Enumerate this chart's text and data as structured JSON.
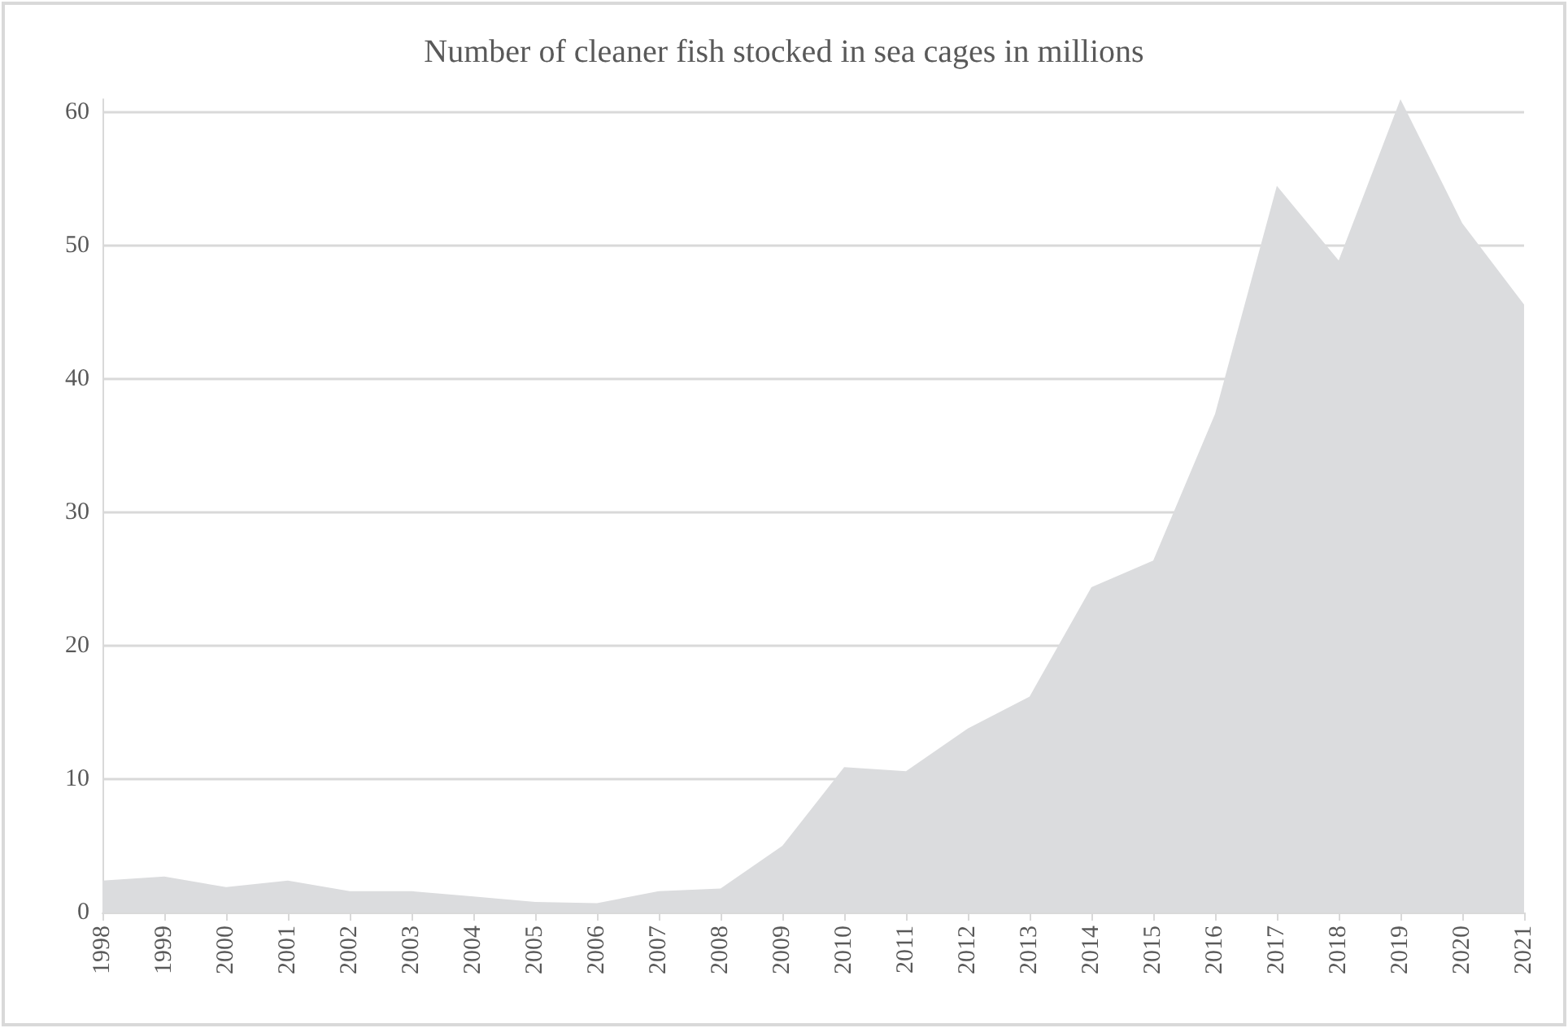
{
  "chart_data": {
    "type": "area",
    "title": "Number of cleaner fish stocked in sea cages in millions",
    "categories": [
      "1998",
      "1999",
      "2000",
      "2001",
      "2002",
      "2003",
      "2004",
      "2005",
      "2006",
      "2007",
      "2008",
      "2009",
      "2010",
      "2011",
      "2012",
      "2013",
      "2014",
      "2015",
      "2016",
      "2017",
      "2018",
      "2019",
      "2020",
      "2021"
    ],
    "series": [
      {
        "color": "#dbdcde",
        "values": [
          2.4,
          2.7,
          1.9,
          2.4,
          1.6,
          1.6,
          1.2,
          0.8,
          0.7,
          1.6,
          1.8,
          5.0,
          10.9,
          10.6,
          13.8,
          16.2,
          24.4,
          26.4,
          37.4,
          54.5,
          48.9,
          61.0,
          51.7,
          45.6
        ]
      }
    ],
    "ylim": [
      0,
      61
    ],
    "yticks": [
      0,
      10,
      20,
      30,
      40,
      50,
      60
    ],
    "grid": "y",
    "marker": "none"
  }
}
